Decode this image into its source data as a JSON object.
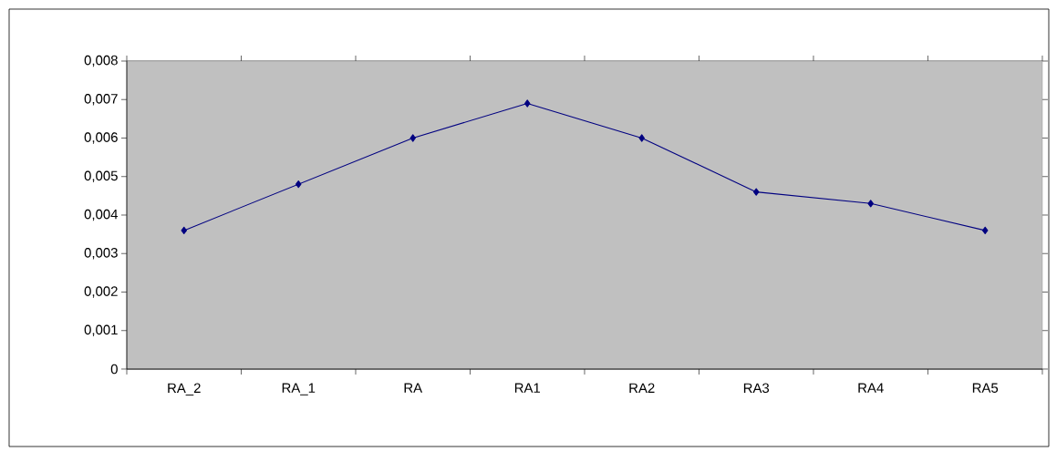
{
  "chart_data": {
    "type": "line",
    "categories": [
      "RA_2",
      "RA_1",
      "RA",
      "RA1",
      "RA2",
      "RA3",
      "RA4",
      "RA5"
    ],
    "series": [
      {
        "color": "#000080",
        "values": [
          0.0036,
          0.0048,
          0.006,
          0.0069,
          0.006,
          0.0046,
          0.0043,
          0.0036
        ]
      }
    ],
    "ylim": [
      0,
      0.008
    ],
    "yticks": [
      0,
      {
        "value": 0.001,
        "label": "0,001"
      },
      {
        "value": 0.002,
        "label": "0,002"
      },
      {
        "value": 0.003,
        "label": "0,003"
      },
      {
        "value": 0.004,
        "label": "0,004"
      },
      {
        "value": 0.005,
        "label": "0,005"
      },
      {
        "value": 0.006,
        "label": "0,006"
      },
      {
        "value": 0.007,
        "label": "0,007"
      },
      {
        "value": 0.008,
        "label": "0,008"
      }
    ],
    "grid": "y",
    "marker": "diamond",
    "line_style": "solid"
  }
}
